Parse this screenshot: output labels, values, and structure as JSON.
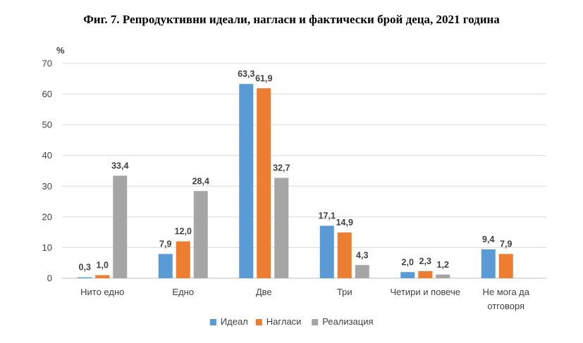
{
  "chart_data": {
    "type": "bar",
    "title": "Фиг. 7. Репродуктивни идеали, нагласи и фактически брой деца, 2021 година",
    "ylabel": "%",
    "xlabel": "",
    "ylim": [
      0,
      70
    ],
    "yticks": [
      "0",
      "10",
      "20",
      "30",
      "40",
      "50",
      "60",
      "70"
    ],
    "grid": true,
    "legend_position": "bottom",
    "categories": [
      [
        "Нито едно"
      ],
      [
        "Едно"
      ],
      [
        "Две"
      ],
      [
        "Три"
      ],
      [
        "Четири и повече"
      ],
      [
        "Не мога да",
        "отговоря"
      ]
    ],
    "series": [
      {
        "name": "Идеал",
        "color": "#5B9BD5",
        "values": [
          0.3,
          7.9,
          63.3,
          17.1,
          2.0,
          9.4
        ],
        "labels": [
          "0,3",
          "7,9",
          "63,3",
          "17,1",
          "2,0",
          "9,4"
        ]
      },
      {
        "name": "Нагласи",
        "color": "#ED7D31",
        "values": [
          1.0,
          12.0,
          61.9,
          14.9,
          2.3,
          7.9
        ],
        "labels": [
          "1,0",
          "12,0",
          "61,9",
          "14,9",
          "2,3",
          "7,9"
        ]
      },
      {
        "name": "Реализация",
        "color": "#A5A5A5",
        "values": [
          33.4,
          28.4,
          32.7,
          4.3,
          1.2,
          null
        ],
        "labels": [
          "33,4",
          "28,4",
          "32,7",
          "4,3",
          "1,2",
          null
        ]
      }
    ]
  }
}
